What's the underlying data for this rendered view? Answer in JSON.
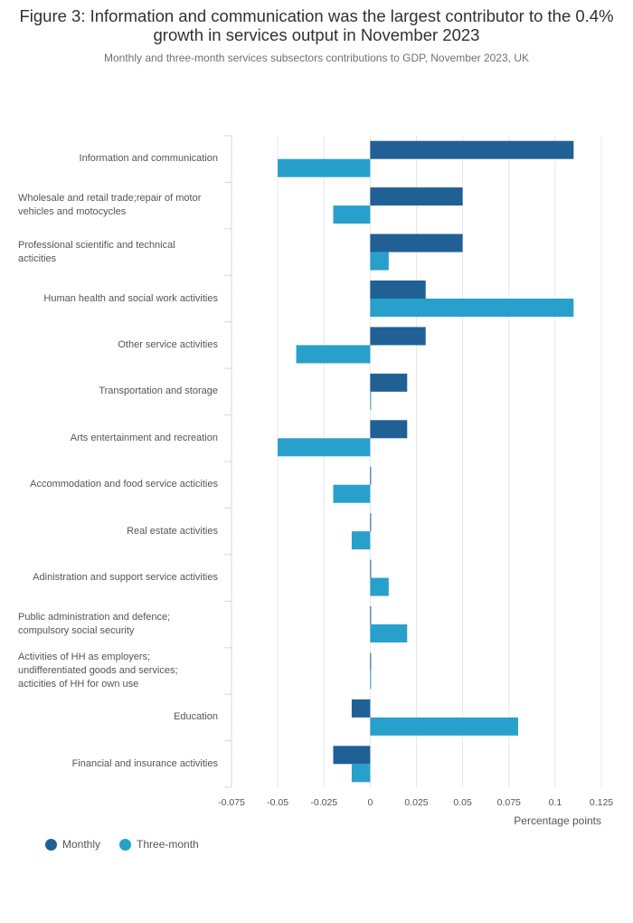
{
  "chart_data": {
    "type": "bar",
    "orientation": "horizontal",
    "title": "Figure 3: Information and communication was the largest contributor to the 0.4% growth in services output in November 2023",
    "subtitle": "Monthly and three-month services subsectors contributions to GDP, November 2023, UK",
    "xlabel": "Percentage points",
    "ylabel": "",
    "xlim": [
      -0.075,
      0.125
    ],
    "xticks": [
      -0.075,
      -0.05,
      -0.025,
      0,
      0.025,
      0.05,
      0.075,
      0.1,
      0.125
    ],
    "xtick_labels": [
      "-0.075",
      "-0.05",
      "-0.025",
      "0",
      "0.025",
      "0.05",
      "0.075",
      "0.1",
      "0.125"
    ],
    "grid": true,
    "legend_position": "bottom-left",
    "categories": [
      "Information and communication",
      "Wholesale and retail trade;repair of motor vehicles and motocycles",
      "Professional scientific and technical acticities",
      "Human health and social work activities",
      "Other service activities",
      "Transportation and storage",
      "Arts entertainment and recreation",
      "Accommodation and food service acticities",
      "Real estate activities",
      "Adinistration and support service activities",
      "Public administration and defence; compulsory social security",
      "Activities of HH as employers; undifferentiated goods and services; acticities of HH for own use",
      "Education",
      "Financial and insurance activities"
    ],
    "category_lines": [
      [
        "Information and communication"
      ],
      [
        "Wholesale and retail trade;repair of motor",
        "vehicles and motocycles"
      ],
      [
        "Professional scientific and technical",
        "acticities"
      ],
      [
        "Human health and social work activities"
      ],
      [
        "Other service activities"
      ],
      [
        "Transportation and storage"
      ],
      [
        "Arts entertainment and recreation"
      ],
      [
        "Accommodation and food service acticities"
      ],
      [
        "Real estate activities"
      ],
      [
        "Adinistration and support service activities"
      ],
      [
        "Public administration and defence;",
        "compulsory social security"
      ],
      [
        "Activities of HH as employers;",
        "undifferentiated goods and services;",
        "acticities of HH for own use"
      ],
      [
        "Education"
      ],
      [
        "Financial and insurance activities"
      ]
    ],
    "series": [
      {
        "name": "Monthly",
        "color": "#206095",
        "values": [
          0.11,
          0.05,
          0.05,
          0.03,
          0.03,
          0.02,
          0.02,
          0,
          0,
          0,
          0,
          0,
          -0.01,
          -0.02
        ]
      },
      {
        "name": "Three-month",
        "color": "#27a0cc",
        "values": [
          -0.05,
          -0.02,
          0.01,
          0.11,
          -0.04,
          0,
          -0.05,
          -0.02,
          -0.01,
          0.01,
          0.02,
          0,
          0.08,
          -0.01
        ]
      }
    ]
  }
}
